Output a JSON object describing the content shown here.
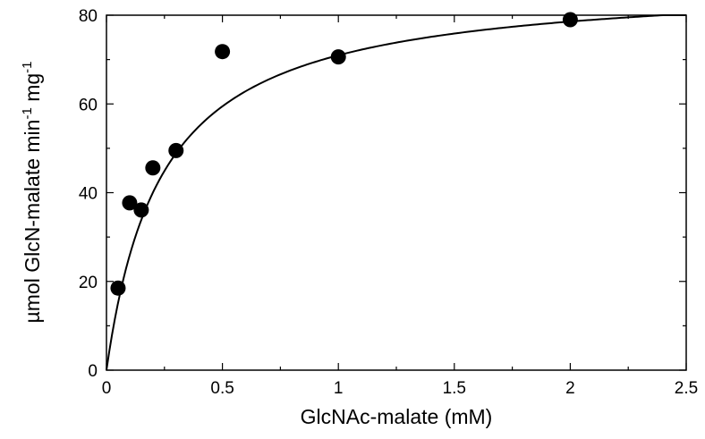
{
  "chart_data": {
    "type": "scatter",
    "xlabel": "GlcNAc-malate (mM)",
    "ylabel": {
      "main": "µmol GlcN-malate min",
      "sup1": "-1",
      "unit2": " mg",
      "sup2": "-1"
    },
    "xlim": [
      0,
      2.5
    ],
    "ylim": [
      0,
      80
    ],
    "x_ticks": [
      "0",
      "0.5",
      "1",
      "1.5",
      "2",
      "2.5"
    ],
    "y_ticks": [
      "0",
      "20",
      "40",
      "60",
      "80"
    ],
    "grid": false,
    "legend": "none",
    "points": [
      {
        "x": 0.05,
        "y": 18.5
      },
      {
        "x": 0.1,
        "y": 37.7
      },
      {
        "x": 0.15,
        "y": 36.1
      },
      {
        "x": 0.2,
        "y": 45.6
      },
      {
        "x": 0.3,
        "y": 49.5
      },
      {
        "x": 0.5,
        "y": 71.8
      },
      {
        "x": 1.0,
        "y": 70.6
      },
      {
        "x": 2.0,
        "y": 79.0
      }
    ],
    "fit": {
      "model": "michaelis-menten",
      "vmax": 88,
      "km": 0.24,
      "x_range": [
        0,
        2.4
      ]
    },
    "colors": {
      "marker": "#000000",
      "line": "#000000",
      "axis": "#000000"
    }
  }
}
